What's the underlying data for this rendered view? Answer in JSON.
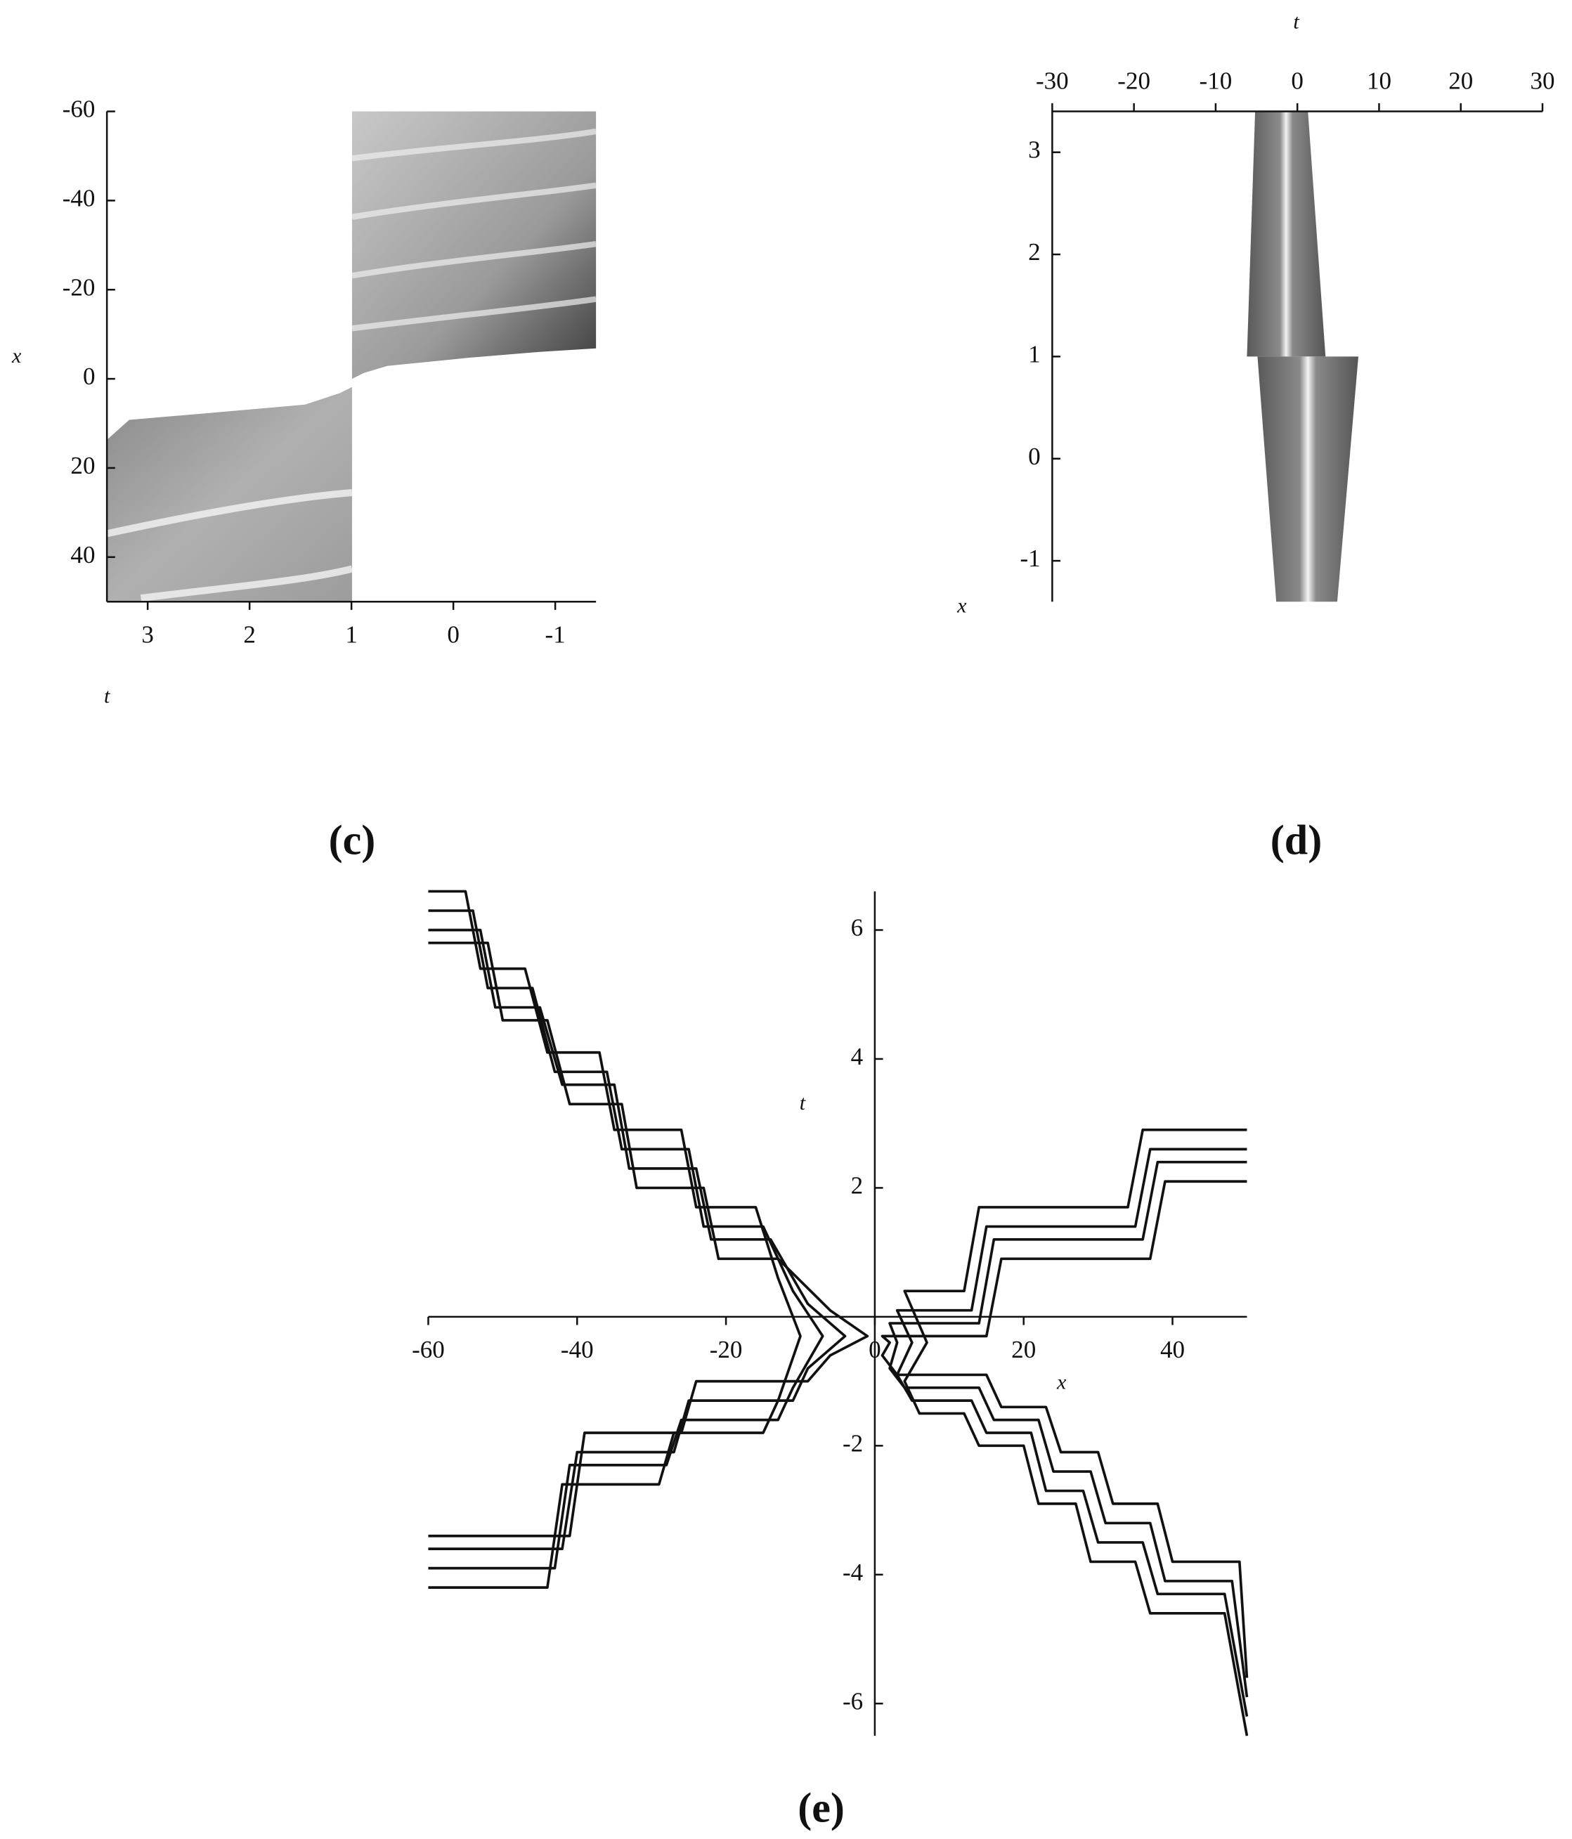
{
  "chart_data": [
    {
      "type": "density",
      "caption": "(c)",
      "xlabel": "t",
      "ylabel": "x",
      "xlim": [
        3.4,
        -1.4
      ],
      "xticks": [
        3,
        2,
        1,
        0,
        -1
      ],
      "ylim": [
        50,
        -60
      ],
      "yticks": [
        -60,
        -40,
        -20,
        0,
        20,
        40
      ]
    },
    {
      "type": "density",
      "caption": "(d)",
      "xlabel": "t",
      "ylabel": "x",
      "xlim": [
        -30,
        30
      ],
      "xticks": [
        -30,
        -20,
        -10,
        0,
        10,
        20,
        30
      ],
      "ylim": [
        -1.4,
        3.4
      ],
      "yticks": [
        3,
        2,
        1,
        0,
        -1
      ]
    },
    {
      "type": "line",
      "caption": "(e)",
      "xlabel": "x",
      "ylabel": "t",
      "xlim": [
        -60,
        50
      ],
      "xticks": [
        -60,
        -40,
        -20,
        0,
        20,
        40
      ],
      "ylim": [
        -6.5,
        6.6
      ],
      "yticks": [
        -6,
        -4,
        -2,
        2,
        4,
        6
      ],
      "series": [
        {
          "color": "#111111",
          "x": [
            -60,
            -55,
            -53,
            -47,
            -44,
            -37,
            -35,
            -26,
            -24,
            -16,
            -13,
            -10,
            -13,
            -15,
            -27,
            -29,
            -42,
            -44,
            -60
          ],
          "values": [
            6.6,
            6.6,
            5.4,
            5.4,
            4.1,
            4.1,
            2.9,
            2.9,
            1.7,
            1.7,
            0.6,
            -0.3,
            -1.3,
            -1.8,
            -1.8,
            -2.6,
            -2.6,
            -4.2,
            -4.2
          ]
        },
        {
          "color": "#111111",
          "x": [
            -60,
            -54,
            -52,
            -46,
            -43,
            -36,
            -34,
            -25,
            -23,
            -15,
            -11,
            -7,
            -11,
            -13,
            -26,
            -28,
            -41,
            -43,
            -60
          ],
          "values": [
            6.3,
            6.3,
            5.1,
            5.1,
            3.8,
            3.8,
            2.6,
            2.6,
            1.4,
            1.4,
            0.4,
            -0.3,
            -1.1,
            -1.6,
            -1.6,
            -2.3,
            -2.3,
            -3.9,
            -3.9
          ]
        },
        {
          "color": "#111111",
          "x": [
            -60,
            -53,
            -51,
            -45,
            -42,
            -35,
            -33,
            -24,
            -22,
            -14,
            -9,
            -4,
            -9,
            -11,
            -25,
            -27,
            -40,
            -42,
            -60
          ],
          "values": [
            6.0,
            6.0,
            4.8,
            4.8,
            3.6,
            3.6,
            2.3,
            2.3,
            1.2,
            1.2,
            0.2,
            -0.3,
            -0.8,
            -1.3,
            -1.3,
            -2.1,
            -2.1,
            -3.6,
            -3.6
          ]
        },
        {
          "color": "#111111",
          "x": [
            -60,
            -52,
            -50,
            -44,
            -41,
            -34,
            -32,
            -23,
            -21,
            -13,
            -6,
            -1,
            -6,
            -9,
            -24,
            -26,
            -39,
            -41,
            -60
          ],
          "values": [
            5.8,
            5.8,
            4.6,
            4.6,
            3.3,
            3.3,
            2.0,
            2.0,
            0.9,
            0.9,
            0.1,
            -0.3,
            -0.6,
            -1.0,
            -1.0,
            -1.8,
            -1.8,
            -3.4,
            -3.4
          ]
        },
        {
          "color": "#111111",
          "x": [
            50,
            36,
            34,
            14,
            12,
            4,
            7,
            4,
            6,
            12,
            14,
            20,
            22,
            27,
            29,
            35,
            37,
            47,
            50
          ],
          "values": [
            2.9,
            2.9,
            1.7,
            1.7,
            0.4,
            0.4,
            -0.4,
            -1.0,
            -1.5,
            -1.5,
            -2.0,
            -2.0,
            -2.9,
            -2.9,
            -3.8,
            -3.8,
            -4.6,
            -4.6,
            -6.5
          ]
        },
        {
          "color": "#111111",
          "x": [
            50,
            37,
            35,
            15,
            13,
            3,
            5,
            3,
            5,
            13,
            15,
            21,
            23,
            28,
            30,
            36,
            38,
            47,
            50
          ],
          "values": [
            2.6,
            2.6,
            1.4,
            1.4,
            0.1,
            0.1,
            -0.4,
            -0.9,
            -1.3,
            -1.3,
            -1.8,
            -1.8,
            -2.7,
            -2.7,
            -3.5,
            -3.5,
            -4.3,
            -4.3,
            -6.2
          ]
        },
        {
          "color": "#111111",
          "x": [
            50,
            38,
            36,
            16,
            14,
            2,
            3,
            2,
            4,
            14,
            16,
            22,
            24,
            29,
            31,
            37,
            39,
            48,
            50
          ],
          "values": [
            2.4,
            2.4,
            1.2,
            1.2,
            -0.1,
            -0.1,
            -0.4,
            -0.8,
            -1.1,
            -1.1,
            -1.6,
            -1.6,
            -2.4,
            -2.4,
            -3.2,
            -3.2,
            -4.1,
            -4.1,
            -5.9
          ]
        },
        {
          "color": "#111111",
          "x": [
            50,
            39,
            37,
            17,
            15,
            1,
            2,
            1,
            3,
            15,
            17,
            23,
            25,
            30,
            32,
            38,
            40,
            49,
            50
          ],
          "values": [
            2.1,
            2.1,
            0.9,
            0.9,
            -0.3,
            -0.3,
            -0.4,
            -0.6,
            -0.9,
            -0.9,
            -1.4,
            -1.4,
            -2.1,
            -2.1,
            -2.9,
            -2.9,
            -3.8,
            -3.8,
            -5.6
          ]
        }
      ]
    }
  ]
}
